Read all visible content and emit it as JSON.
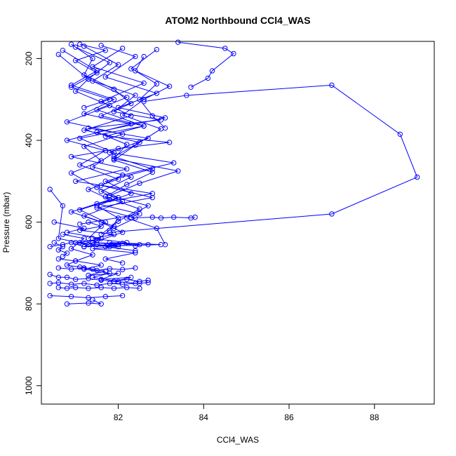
{
  "chart_data": {
    "type": "line",
    "title": "ATOM2 Northbound CCl4_WAS",
    "xlabel": "CCl4_WAS",
    "ylabel": "Pressure (mbar)",
    "xlim": [
      80.2,
      89.4
    ],
    "ylim": [
      1045,
      158
    ],
    "y_reversed": true,
    "x_ticks": [
      82,
      84,
      86,
      88
    ],
    "y_ticks": [
      200,
      400,
      600,
      800,
      1000
    ],
    "grid": false,
    "legend": "none",
    "colors": {
      "series": "#0000ff"
    },
    "series": [
      {
        "x": [
          83.4,
          84.5,
          84.7,
          84.2,
          84.1,
          83.7
        ],
        "y": [
          160,
          175,
          188,
          230,
          248,
          270
        ]
      },
      {
        "x": [
          82.6,
          83.6,
          87.0,
          88.6,
          89.0,
          87.0,
          81.8
        ],
        "y": [
          305,
          290,
          265,
          385,
          490,
          580,
          625
        ]
      },
      {
        "x": [
          80.9,
          81.4,
          81.2,
          81.9,
          82.3,
          81.6,
          82.6,
          81.7,
          83.2,
          82.0,
          80.9,
          82.2,
          81.0,
          82.8,
          81.5,
          82.5,
          81.1
        ],
        "y": [
          165,
          200,
          240,
          275,
          310,
          340,
          365,
          390,
          405,
          420,
          440,
          470,
          500,
          530,
          555,
          580,
          605
        ]
      },
      {
        "x": [
          81.2,
          82.0,
          81.4,
          82.4,
          81.9,
          83.0,
          81.3,
          82.7,
          81.8,
          83.3,
          82.1,
          81.6,
          82.8,
          81.5,
          82.4,
          81.9
        ],
        "y": [
          170,
          215,
          255,
          290,
          330,
          350,
          370,
          395,
          430,
          455,
          485,
          510,
          540,
          565,
          590,
          615
        ]
      },
      {
        "x": [
          80.7,
          81.5,
          80.9,
          81.9,
          81.2,
          82.3,
          80.8,
          81.7,
          81.1,
          82.0,
          81.3,
          81.8,
          80.9,
          81.6,
          82.1,
          81.4
        ],
        "y": [
          180,
          230,
          265,
          300,
          335,
          360,
          400,
          425,
          460,
          495,
          520,
          545,
          575,
          600,
          625,
          650
        ]
      },
      {
        "x": [
          81.6,
          82.4,
          81.7,
          82.9,
          82.0,
          83.1,
          81.5,
          82.2,
          81.9,
          83.4,
          82.5,
          81.8,
          82.7,
          82.2,
          82.9,
          83.1
        ],
        "y": [
          168,
          195,
          245,
          285,
          320,
          345,
          380,
          410,
          445,
          475,
          505,
          535,
          560,
          590,
          615,
          655
        ]
      },
      {
        "x": [
          80.6,
          81.3,
          81.0,
          81.8,
          80.8,
          82.1,
          81.2,
          81.6,
          80.9,
          81.5,
          82.0,
          81.1,
          81.7,
          81.3
        ],
        "y": [
          190,
          250,
          280,
          315,
          355,
          385,
          415,
          450,
          480,
          515,
          540,
          570,
          600,
          640
        ]
      },
      {
        "x": [
          82.1,
          81.4,
          82.6,
          81.6,
          82.3,
          81.2,
          82.5,
          81.9,
          82.8,
          81.7,
          82.3,
          81.5,
          82.0,
          81.8
        ],
        "y": [
          175,
          220,
          260,
          305,
          340,
          375,
          405,
          440,
          470,
          500,
          530,
          560,
          590,
          620
        ]
      },
      {
        "x": [
          81.0,
          81.8,
          81.3,
          82.2,
          81.5,
          82.6,
          81.1,
          81.9,
          81.4,
          82.3,
          81.6,
          82.1,
          81.2,
          81.9,
          81.5
        ],
        "y": [
          172,
          210,
          250,
          295,
          325,
          365,
          395,
          430,
          465,
          490,
          525,
          550,
          585,
          610,
          645
        ]
      },
      {
        "x": [
          82.9,
          82.3,
          83.2,
          82.6,
          82.1,
          83.0,
          82.4,
          81.9,
          82.8,
          82.2,
          81.7,
          82.5,
          82.0,
          81.6
        ],
        "y": [
          178,
          225,
          268,
          300,
          338,
          372,
          412,
          448,
          478,
          508,
          538,
          568,
          598,
          630
        ]
      },
      {
        "x": [
          80.4,
          80.7,
          80.6,
          81.3,
          81.0,
          81.5,
          81.2,
          82.0,
          81.4,
          82.5,
          81.8,
          83.0,
          81.2
        ],
        "y": [
          520,
          560,
          640,
          655,
          650,
          645,
          660,
          655,
          650,
          655,
          650,
          655,
          660
        ]
      },
      {
        "x": [
          80.5,
          81.2,
          80.8,
          81.6,
          81.1,
          82.0,
          81.4,
          82.4,
          81.7,
          82.1
        ],
        "y": [
          600,
          615,
          625,
          640,
          650,
          660,
          665,
          675,
          690,
          700
        ]
      },
      {
        "x": [
          82.3,
          82.8,
          83.0,
          83.3,
          83.7,
          83.8
        ],
        "y": [
          590,
          588,
          590,
          588,
          590,
          588
        ]
      },
      {
        "x": [
          80.7,
          81.2,
          80.9,
          81.4,
          81.0,
          81.6,
          81.2,
          81.8,
          81.4,
          82.0
        ],
        "y": [
          630,
          640,
          665,
          680,
          695,
          705,
          715,
          725,
          735,
          745
        ]
      },
      {
        "x": [
          80.4,
          80.7,
          80.9,
          81.2,
          81.5,
          81.8,
          82.1,
          82.4,
          82.7
        ],
        "y": [
          660,
          655,
          650,
          660,
          655,
          660,
          652,
          658,
          655
        ]
      },
      {
        "x": [
          80.6,
          81.0,
          80.8,
          81.4,
          81.1,
          81.7,
          81.3,
          82.0,
          81.6,
          82.3,
          81.9,
          82.5
        ],
        "y": [
          690,
          695,
          705,
          715,
          710,
          720,
          730,
          725,
          740,
          735,
          745,
          750
        ]
      },
      {
        "x": [
          80.4,
          80.6,
          80.8,
          81.0,
          81.3,
          81.6,
          81.9,
          82.2,
          82.5,
          82.7
        ],
        "y": [
          728,
          735,
          735,
          740,
          738,
          742,
          745,
          740,
          745,
          742
        ]
      },
      {
        "x": [
          80.4,
          80.6,
          80.9,
          81.2,
          81.5,
          81.8,
          82.1,
          82.4,
          82.7
        ],
        "y": [
          750,
          748,
          752,
          750,
          754,
          750,
          752,
          750,
          748
        ]
      },
      {
        "x": [
          80.6,
          80.8,
          81.0,
          81.3,
          81.6,
          81.9,
          82.2,
          82.5
        ],
        "y": [
          760,
          762,
          760,
          762,
          760,
          762,
          760,
          762
        ]
      },
      {
        "x": [
          80.6,
          80.9,
          81.2,
          81.5,
          81.8,
          82.1,
          82.4
        ],
        "y": [
          712,
          715,
          712,
          718,
          714,
          716,
          712
        ]
      },
      {
        "x": [
          80.4,
          80.9,
          81.3,
          81.7,
          82.1
        ],
        "y": [
          780,
          782,
          785,
          782,
          780
        ]
      },
      {
        "x": [
          80.8,
          81.3,
          81.6,
          81.4
        ],
        "y": [
          800,
          798,
          800,
          790
        ]
      },
      {
        "x": [
          80.5,
          80.7,
          80.6,
          80.8,
          80.7
        ],
        "y": [
          650,
          660,
          668,
          676,
          684
        ]
      },
      {
        "x": [
          81.3,
          81.6,
          81.1,
          81.9,
          81.4,
          82.2,
          81.7,
          82.4
        ],
        "y": [
          600,
          610,
          620,
          630,
          640,
          650,
          660,
          670
        ]
      },
      {
        "x": [
          81.1,
          81.7,
          81.0,
          81.5,
          80.9,
          81.8,
          81.2
        ],
        "y": [
          165,
          180,
          205,
          235,
          270,
          300,
          320
        ]
      },
      {
        "x": [
          82.6,
          82.4,
          82.9,
          82.5,
          82.8,
          83.1
        ],
        "y": [
          195,
          230,
          262,
          300,
          340,
          370
        ]
      }
    ]
  }
}
